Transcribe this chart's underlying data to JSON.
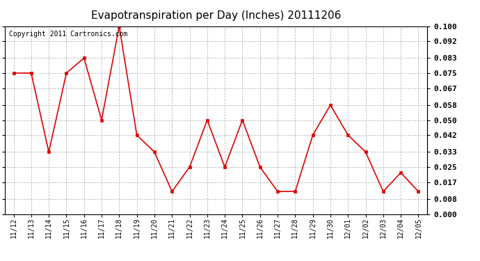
{
  "title": "Evapotranspiration per Day (Inches) 20111206",
  "copyright_text": "Copyright 2011 Cartronics.com",
  "x_labels": [
    "11/12",
    "11/13",
    "11/14",
    "11/15",
    "11/16",
    "11/17",
    "11/18",
    "11/19",
    "11/20",
    "11/21",
    "11/22",
    "11/23",
    "11/24",
    "11/25",
    "11/26",
    "11/27",
    "11/28",
    "11/29",
    "11/30",
    "12/01",
    "12/02",
    "12/03",
    "12/04",
    "12/05"
  ],
  "y_values": [
    0.075,
    0.075,
    0.033,
    0.075,
    0.083,
    0.05,
    0.1,
    0.042,
    0.033,
    0.012,
    0.025,
    0.05,
    0.025,
    0.05,
    0.025,
    0.012,
    0.012,
    0.042,
    0.058,
    0.042,
    0.033,
    0.012,
    0.022,
    0.012
  ],
  "line_color": "#dd0000",
  "marker": "s",
  "marker_size": 3,
  "ylim": [
    0.0,
    0.1
  ],
  "yticks": [
    0.0,
    0.008,
    0.017,
    0.025,
    0.033,
    0.042,
    0.05,
    0.058,
    0.067,
    0.075,
    0.083,
    0.092,
    0.1
  ],
  "grid_color": "#bbbbbb",
  "bg_color": "#ffffff",
  "title_fontsize": 11,
  "copyright_fontsize": 7,
  "tick_fontsize": 8,
  "xtick_fontsize": 7
}
